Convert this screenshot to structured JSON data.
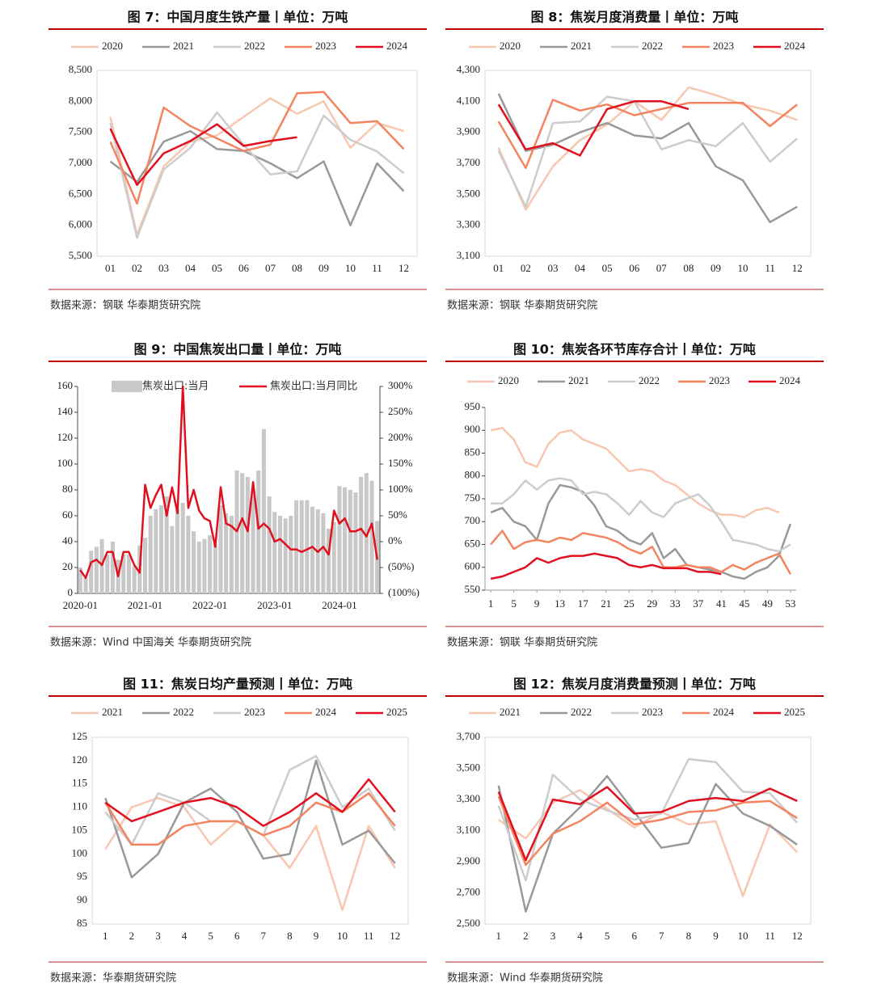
{
  "chart_data": [
    {
      "type": "line",
      "title": "图 7：中国月度生铁产量丨单位：万吨",
      "source": "数据来源：钢联 华泰期货研究院",
      "categories": [
        "01",
        "02",
        "03",
        "04",
        "05",
        "06",
        "07",
        "08",
        "09",
        "10",
        "11",
        "12"
      ],
      "ylim": [
        5500,
        8500
      ],
      "yticks": [
        {
          "value": 5500,
          "label": "5,500"
        },
        {
          "value": 6000,
          "label": "6,000"
        },
        {
          "value": 6500,
          "label": "6,500"
        },
        {
          "value": 7000,
          "label": "7,000"
        },
        {
          "value": 7500,
          "label": "7,500"
        },
        {
          "value": 8000,
          "label": "8,000"
        },
        {
          "value": 8500,
          "label": "8,500"
        }
      ],
      "series": [
        {
          "name": "2020",
          "color": "#f9c6b0",
          "values": [
            7750,
            5850,
            6950,
            7350,
            7450,
            7750,
            8050,
            7800,
            8000,
            7250,
            7650,
            7520
          ]
        },
        {
          "name": "2021",
          "color": "#999999",
          "values": [
            7030,
            6700,
            7350,
            7520,
            7230,
            7200,
            7000,
            6760,
            7030,
            6000,
            7000,
            6550
          ]
        },
        {
          "name": "2022",
          "color": "#cccccc",
          "values": [
            7650,
            5800,
            6900,
            7250,
            7820,
            7300,
            6820,
            6870,
            7770,
            7380,
            7190,
            6840
          ]
        },
        {
          "name": "2023",
          "color": "#f4845f",
          "values": [
            7350,
            6350,
            7900,
            7600,
            7400,
            7200,
            7300,
            8130,
            8150,
            7650,
            7680,
            7230
          ]
        },
        {
          "name": "2024",
          "color": "#e0101e",
          "values": [
            7560,
            6650,
            7160,
            7360,
            7630,
            7280,
            7360,
            7420,
            null,
            null,
            null,
            null
          ]
        }
      ]
    },
    {
      "type": "line",
      "title": "图 8：焦炭月度消费量丨单位：万吨",
      "source": "数据来源：钢联 华泰期货研究院",
      "categories": [
        "01",
        "02",
        "03",
        "04",
        "05",
        "06",
        "07",
        "08",
        "09",
        "10",
        "11",
        "12"
      ],
      "ylim": [
        3100,
        4300
      ],
      "yticks": [
        {
          "value": 3100,
          "label": "3,100"
        },
        {
          "value": 3300,
          "label": "3,300"
        },
        {
          "value": 3500,
          "label": "3,500"
        },
        {
          "value": 3700,
          "label": "3,700"
        },
        {
          "value": 3900,
          "label": "3,900"
        },
        {
          "value": 4100,
          "label": "4,100"
        },
        {
          "value": 4300,
          "label": "4,300"
        }
      ],
      "series": [
        {
          "name": "2020",
          "color": "#f9c6b0",
          "values": [
            3800,
            3400,
            3680,
            3850,
            3950,
            4100,
            3980,
            4190,
            4140,
            4080,
            4040,
            3980
          ]
        },
        {
          "name": "2021",
          "color": "#999999",
          "values": [
            4150,
            3780,
            3820,
            3900,
            3960,
            3880,
            3860,
            3960,
            3680,
            3590,
            3320,
            3420
          ]
        },
        {
          "name": "2022",
          "color": "#cccccc",
          "values": [
            3780,
            3420,
            3960,
            3970,
            4130,
            4100,
            3790,
            3850,
            3810,
            3960,
            3710,
            3860
          ]
        },
        {
          "name": "2023",
          "color": "#f4845f",
          "values": [
            3970,
            3670,
            4110,
            4040,
            4080,
            4010,
            4050,
            4090,
            4090,
            4090,
            3940,
            4080
          ]
        },
        {
          "name": "2024",
          "color": "#e0101e",
          "values": [
            4080,
            3790,
            3830,
            3750,
            4050,
            4100,
            4100,
            4050,
            null,
            null,
            null,
            null
          ]
        }
      ]
    },
    {
      "type": "combo",
      "title": "图 9：中国焦炭出口量丨单位：万吨",
      "source": "数据来源：Wind 中国海关 华泰期货研究院",
      "categories": [
        "2020-01",
        null,
        null,
        null,
        null,
        null,
        null,
        null,
        null,
        null,
        null,
        null,
        "2021-01",
        null,
        null,
        null,
        null,
        null,
        null,
        null,
        null,
        null,
        null,
        null,
        "2022-01",
        null,
        null,
        null,
        null,
        null,
        null,
        null,
        null,
        null,
        null,
        null,
        "2023-01",
        null,
        null,
        null,
        null,
        null,
        null,
        null,
        null,
        null,
        null,
        null,
        "2024-01",
        null,
        null,
        null,
        null,
        null,
        null,
        null
      ],
      "ylim": [
        0,
        160
      ],
      "yticks": [
        0,
        20,
        40,
        60,
        80,
        100,
        120,
        140,
        160
      ],
      "y2lim": [
        -100,
        300
      ],
      "y2ticks": [
        {
          "value": -100,
          "label": "(100%)"
        },
        {
          "value": -50,
          "label": "(50%)"
        },
        {
          "value": 0,
          "label": "0%"
        },
        {
          "value": 50,
          "label": "50%"
        },
        {
          "value": 100,
          "label": "100%"
        },
        {
          "value": 150,
          "label": "150%"
        },
        {
          "value": 200,
          "label": "200%"
        },
        {
          "value": 250,
          "label": "250%"
        },
        {
          "value": 300,
          "label": "300%"
        }
      ],
      "y2_negative_color": "#e0101e",
      "series": [
        {
          "name": "焦炭出口:当月",
          "type": "bar",
          "color": "#c8c8c8",
          "values": [
            20,
            12,
            33,
            36,
            42,
            30,
            40,
            26,
            30,
            30,
            21,
            37,
            43,
            60,
            65,
            68,
            75,
            52,
            65,
            70,
            60,
            48,
            40,
            42,
            45,
            38,
            68,
            62,
            60,
            95,
            93,
            90,
            80,
            95,
            127,
            75,
            63,
            60,
            58,
            60,
            72,
            72,
            72,
            67,
            65,
            62,
            50,
            55,
            83,
            82,
            80,
            78,
            90,
            93,
            87,
            56
          ]
        },
        {
          "name": "焦炭出口:当月同比",
          "color": "#e0101e",
          "axis": "y2",
          "values": [
            -55,
            -70,
            -40,
            -35,
            -45,
            -20,
            -20,
            -67,
            -20,
            -20,
            -45,
            -60,
            110,
            65,
            90,
            110,
            50,
            105,
            55,
            300,
            65,
            100,
            60,
            45,
            40,
            -10,
            105,
            35,
            30,
            20,
            45,
            20,
            115,
            25,
            35,
            25,
            0,
            5,
            -5,
            -15,
            -15,
            -20,
            -15,
            -10,
            -20,
            -10,
            -25,
            60,
            35,
            45,
            20,
            20,
            25,
            10,
            35,
            -35
          ]
        }
      ]
    },
    {
      "type": "line",
      "title": "图 10：焦炭各环节库存合计丨单位：万吨",
      "source": "数据来源：钢联 华泰期货研究院",
      "x": [
        1,
        3,
        5,
        7,
        9,
        11,
        13,
        15,
        17,
        19,
        21,
        23,
        25,
        27,
        29,
        31,
        33,
        35,
        37,
        39,
        41,
        43,
        45,
        47,
        49,
        51,
        53
      ],
      "xlim": [
        0,
        54
      ],
      "xticks": [
        1,
        5,
        9,
        13,
        17,
        21,
        25,
        29,
        33,
        37,
        41,
        45,
        49,
        53
      ],
      "ylim": [
        550,
        950
      ],
      "yticks": [
        550,
        600,
        650,
        700,
        750,
        800,
        850,
        900,
        950
      ],
      "series": [
        {
          "name": "2020",
          "color": "#f9c6b0",
          "values": [
            900,
            905,
            880,
            830,
            820,
            870,
            895,
            900,
            880,
            870,
            860,
            835,
            810,
            815,
            810,
            790,
            780,
            760,
            740,
            725,
            715,
            715,
            710,
            725,
            730,
            720,
            null
          ]
        },
        {
          "name": "2021",
          "color": "#999999",
          "values": [
            720,
            730,
            700,
            690,
            660,
            740,
            780,
            775,
            765,
            735,
            690,
            680,
            660,
            650,
            675,
            620,
            640,
            605,
            600,
            595,
            590,
            580,
            575,
            590,
            600,
            625,
            695
          ]
        },
        {
          "name": "2022",
          "color": "#cccccc",
          "values": [
            740,
            740,
            760,
            790,
            770,
            790,
            795,
            790,
            760,
            765,
            760,
            740,
            715,
            745,
            720,
            710,
            740,
            750,
            760,
            735,
            700,
            660,
            655,
            650,
            640,
            635,
            650
          ]
        },
        {
          "name": "2023",
          "color": "#f4845f",
          "values": [
            650,
            680,
            640,
            655,
            660,
            655,
            665,
            660,
            675,
            670,
            665,
            655,
            640,
            630,
            645,
            600,
            600,
            605,
            600,
            600,
            590,
            605,
            595,
            610,
            620,
            630,
            585
          ]
        },
        {
          "name": "2024",
          "color": "#e0101e",
          "values": [
            575,
            580,
            590,
            600,
            620,
            610,
            620,
            625,
            625,
            630,
            625,
            620,
            605,
            600,
            605,
            598,
            598,
            598,
            590,
            590,
            585,
            null,
            null,
            null,
            null,
            null,
            null
          ]
        }
      ]
    },
    {
      "type": "line",
      "title": "图 11：焦炭日均产量预测丨单位：万吨",
      "source": "数据来源：华泰期货研究院",
      "categories": [
        "1",
        "2",
        "3",
        "4",
        "5",
        "6",
        "7",
        "8",
        "9",
        "10",
        "11",
        "12"
      ],
      "ylim": [
        85,
        125
      ],
      "yticks": [
        85,
        90,
        95,
        100,
        105,
        110,
        115,
        120,
        125
      ],
      "series": [
        {
          "name": "2021",
          "color": "#f9c6b0",
          "values": [
            101,
            110,
            112,
            110,
            102,
            107,
            104,
            97,
            106,
            88,
            106,
            97
          ]
        },
        {
          "name": "2022",
          "color": "#999999",
          "values": [
            112,
            95,
            100,
            111,
            114,
            109,
            99,
            100,
            120,
            102,
            105,
            98
          ]
        },
        {
          "name": "2023",
          "color": "#cccccc",
          "values": [
            109,
            102,
            113,
            111,
            107,
            107,
            104,
            118,
            121,
            110,
            114,
            105
          ]
        },
        {
          "name": "2024",
          "color": "#f4845f",
          "values": [
            111,
            102,
            102,
            106,
            107,
            107,
            104,
            106,
            111,
            109,
            113,
            106
          ]
        },
        {
          "name": "2025",
          "color": "#e0101e",
          "values": [
            111,
            107,
            109,
            111,
            112,
            110,
            106,
            109,
            113,
            109,
            116,
            109
          ]
        }
      ]
    },
    {
      "type": "line",
      "title": "图 12：焦炭月度消费量预测丨单位：万吨",
      "source": "数据来源：Wind 华泰期货研究院",
      "categories": [
        "1",
        "2",
        "3",
        "4",
        "5",
        "6",
        "7",
        "8",
        "9",
        "10",
        "11",
        "12"
      ],
      "ylim": [
        2500,
        3700
      ],
      "yticks": [
        {
          "value": 2500,
          "label": "2,500"
        },
        {
          "value": 2700,
          "label": "2,700"
        },
        {
          "value": 2900,
          "label": "2,900"
        },
        {
          "value": 3100,
          "label": "3,100"
        },
        {
          "value": 3300,
          "label": "3,300"
        },
        {
          "value": 3500,
          "label": "3,500"
        },
        {
          "value": 3700,
          "label": "3,700"
        }
      ],
      "series": [
        {
          "name": "2021",
          "color": "#f9c6b0",
          "values": [
            3170,
            3050,
            3280,
            3360,
            3240,
            3120,
            3220,
            3140,
            3160,
            2680,
            3140,
            2960
          ]
        },
        {
          "name": "2022",
          "color": "#999999",
          "values": [
            3390,
            2580,
            3080,
            3250,
            3450,
            3220,
            2990,
            3020,
            3400,
            3210,
            3130,
            3010
          ]
        },
        {
          "name": "2023",
          "color": "#cccccc",
          "values": [
            3260,
            2780,
            3460,
            3300,
            3230,
            3170,
            3210,
            3560,
            3540,
            3350,
            3340,
            3150
          ]
        },
        {
          "name": "2024",
          "color": "#f4845f",
          "values": [
            3320,
            2880,
            3080,
            3160,
            3280,
            3140,
            3170,
            3220,
            3230,
            3280,
            3290,
            3180
          ]
        },
        {
          "name": "2025",
          "color": "#e0101e",
          "values": [
            3350,
            2910,
            3300,
            3270,
            3380,
            3210,
            3220,
            3290,
            3310,
            3290,
            3370,
            3290
          ]
        }
      ]
    }
  ]
}
